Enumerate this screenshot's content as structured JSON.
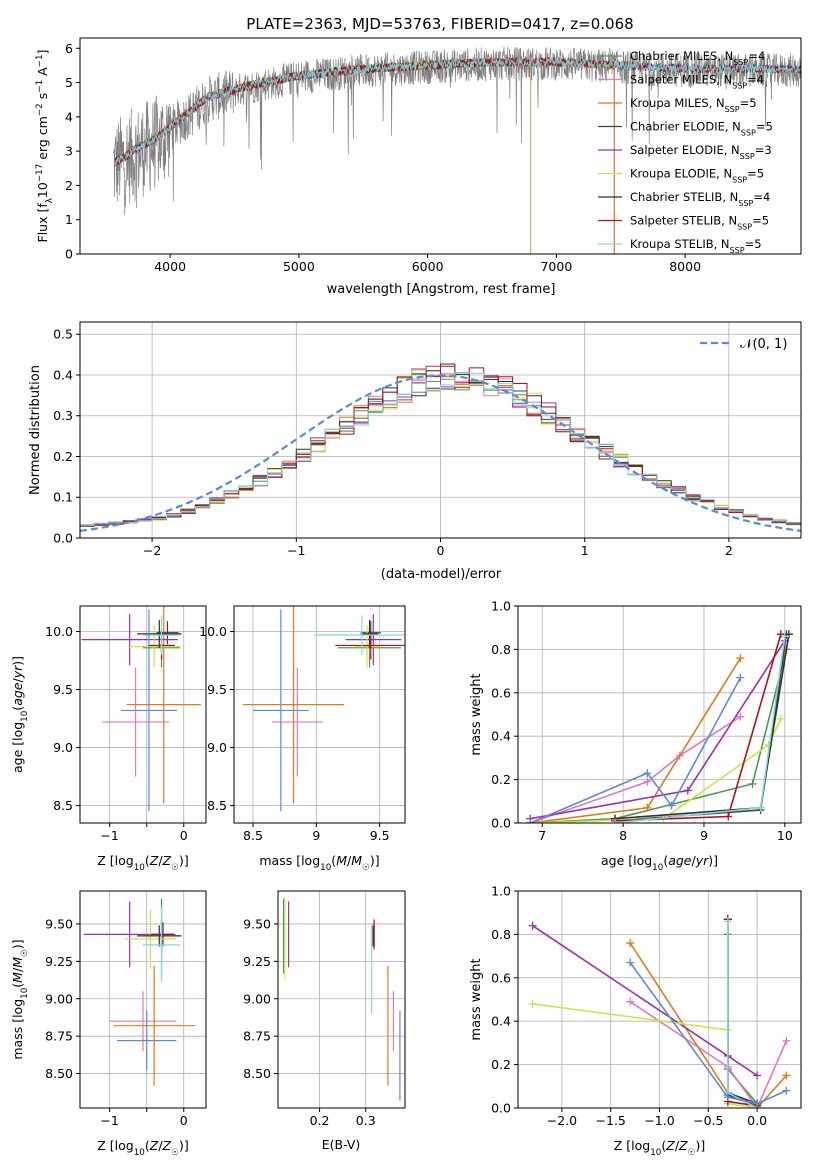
{
  "figure": {
    "title": "PLATE=2363, MJD=53763, FIBERID=0417, z=0.068"
  },
  "chart_data": [
    {
      "id": "spectrum",
      "type": "line",
      "xlabel": "wavelength [Angstrom, rest frame]",
      "ylabel": "Flux [f_λ 10^-17 erg cm^-2 s^-1 A^-1]",
      "xlim": [
        3300,
        8900
      ],
      "ylim": [
        0,
        6.3
      ],
      "xticks": [
        4000,
        5000,
        6000,
        7000,
        8000
      ],
      "yticks": [
        0,
        1,
        2,
        3,
        4,
        5,
        6
      ],
      "legend_loc": "upper-right",
      "data_curve": {
        "color": "#808080",
        "x_range": [
          3560,
          8900
        ],
        "continuum": [
          [
            3560,
            2.7
          ],
          [
            3700,
            3.0
          ],
          [
            3900,
            3.4
          ],
          [
            4100,
            4.0
          ],
          [
            4300,
            4.6
          ],
          [
            4600,
            4.9
          ],
          [
            5000,
            5.2
          ],
          [
            5500,
            5.4
          ],
          [
            6000,
            5.5
          ],
          [
            6500,
            5.6
          ],
          [
            7000,
            5.6
          ],
          [
            7500,
            5.5
          ],
          [
            8000,
            5.4
          ],
          [
            8900,
            5.4
          ]
        ]
      },
      "series": [
        {
          "name": "Chabrier MILES, N_SSP=4",
          "color": "#4d9a4d",
          "x_end": 7450
        },
        {
          "name": "Salpeter MILES, N_SSP=4",
          "color": "#e377c2",
          "x_end": 7450
        },
        {
          "name": "Kroupa MILES, N_SSP=5",
          "color": "#e07b1a",
          "x_end": 7450
        },
        {
          "name": "Chabrier ELODIE, N_SSP=5",
          "color": "#404040",
          "x_end": 6800
        },
        {
          "name": "Salpeter ELODIE, N_SSP=3",
          "color": "#9b30b0",
          "x_end": 6800
        },
        {
          "name": "Kroupa ELODIE, N_SSP=5",
          "color": "#c8e64a",
          "x_end": 6800
        },
        {
          "name": "Chabrier STELIB, N_SSP=4",
          "color": "#303030",
          "x_end": 8900
        },
        {
          "name": "Salpeter STELIB, N_SSP=5",
          "color": "#b01020",
          "x_end": 8900
        },
        {
          "name": "Kroupa STELIB, N_SSP=5",
          "color": "#80d8e0",
          "x_end": 8900
        }
      ]
    },
    {
      "id": "residuals",
      "type": "histogram",
      "xlabel": "(data-model)/error",
      "ylabel": "Normed distribution",
      "xlim": [
        -2.5,
        2.5
      ],
      "ylim": [
        0,
        0.53
      ],
      "xticks": [
        -2,
        -1,
        0,
        1,
        2
      ],
      "yticks": [
        0.0,
        0.1,
        0.2,
        0.3,
        0.4,
        0.5
      ],
      "grid": true,
      "legend_loc": "upper-right",
      "gaussian": {
        "name": "𝒩(0, 1)",
        "color": "#5b8bd8",
        "style": "dashed"
      },
      "bin_width": 0.1,
      "bin_start": -2.5,
      "base_profile": [
        0.03,
        0.034,
        0.037,
        0.04,
        0.044,
        0.048,
        0.056,
        0.066,
        0.078,
        0.092,
        0.108,
        0.124,
        0.141,
        0.161,
        0.183,
        0.206,
        0.23,
        0.252,
        0.276,
        0.301,
        0.326,
        0.347,
        0.364,
        0.382,
        0.395,
        0.4,
        0.398,
        0.392,
        0.38,
        0.368,
        0.35,
        0.329,
        0.307,
        0.283,
        0.259,
        0.235,
        0.212,
        0.19,
        0.17,
        0.15,
        0.132,
        0.116,
        0.1,
        0.087,
        0.075,
        0.064,
        0.055,
        0.047,
        0.041,
        0.035
      ]
    },
    {
      "id": "age-vs-Z",
      "type": "errorbar",
      "xlabel": "Z [log10(Z/Z☉)]",
      "ylabel": "age [log10(age/yr)]",
      "xlim": [
        -1.4,
        0.3
      ],
      "ylim": [
        8.35,
        10.22
      ],
      "xticks": [
        -1,
        -0.5,
        0
      ],
      "xticklabels": [
        "−1",
        "",
        "0"
      ],
      "yticks": [
        8.5,
        9.0,
        9.5,
        10.0
      ],
      "grid": true,
      "points": [
        {
          "color": "#4d9a4d",
          "x": -0.3,
          "xerr": 0.25,
          "y": 9.86,
          "yerr": 0.17
        },
        {
          "color": "#e377c2",
          "x": -0.65,
          "xerr": 0.45,
          "y": 9.22,
          "yerr": 0.47
        },
        {
          "color": "#e07b1a",
          "x": -0.27,
          "xerr": 0.5,
          "y": 9.37,
          "yerr": 0.85
        },
        {
          "color": "#404040",
          "x": -0.22,
          "xerr": 0.15,
          "y": 9.99,
          "yerr": 0.1
        },
        {
          "color": "#9b30b0",
          "x": -0.73,
          "xerr": 0.65,
          "y": 9.93,
          "yerr": 0.22
        },
        {
          "color": "#c8e64a",
          "x": -0.4,
          "xerr": 0.35,
          "y": 9.87,
          "yerr": 0.18
        },
        {
          "color": "#303030",
          "x": -0.33,
          "xerr": 0.3,
          "y": 9.98,
          "yerr": 0.12
        },
        {
          "color": "#b01020",
          "x": -0.3,
          "xerr": 0.18,
          "y": 9.88,
          "yerr": 0.12
        },
        {
          "color": "#80d8e0",
          "x": -0.3,
          "xerr": 0.25,
          "y": 9.97,
          "yerr": 0.17
        },
        {
          "color": "#5b8bd8",
          "x": -0.47,
          "xerr": 0.38,
          "y": 9.32,
          "yerr": 0.87
        }
      ]
    },
    {
      "id": "age-vs-mass",
      "type": "errorbar",
      "xlabel": "mass [log10(M/M☉)]",
      "xlim": [
        8.35,
        9.7
      ],
      "ylim": [
        8.35,
        10.22
      ],
      "xticks": [
        8.5,
        9.0,
        9.5
      ],
      "yticks": [
        8.5,
        9.0,
        9.5,
        10.0
      ],
      "grid": true,
      "points": [
        {
          "color": "#4d9a4d",
          "x": 9.42,
          "xerr": 0.25,
          "y": 9.86,
          "yerr": 0.17
        },
        {
          "color": "#e377c2",
          "x": 8.85,
          "xerr": 0.2,
          "y": 9.22,
          "yerr": 0.47
        },
        {
          "color": "#e07b1a",
          "x": 8.82,
          "xerr": 0.4,
          "y": 9.37,
          "yerr": 0.85
        },
        {
          "color": "#404040",
          "x": 9.43,
          "xerr": 0.08,
          "y": 9.99,
          "yerr": 0.1
        },
        {
          "color": "#9b30b0",
          "x": 9.45,
          "xerr": 0.22,
          "y": 9.93,
          "yerr": 0.22
        },
        {
          "color": "#c8e64a",
          "x": 9.4,
          "xerr": 0.1,
          "y": 9.87,
          "yerr": 0.18
        },
        {
          "color": "#303030",
          "x": 9.42,
          "xerr": 0.07,
          "y": 9.98,
          "yerr": 0.12
        },
        {
          "color": "#b01020",
          "x": 9.43,
          "xerr": 0.28,
          "y": 9.88,
          "yerr": 0.12
        },
        {
          "color": "#80d8e0",
          "x": 9.36,
          "xerr": 0.38,
          "y": 9.97,
          "yerr": 0.17
        },
        {
          "color": "#5b8bd8",
          "x": 8.72,
          "xerr": 0.22,
          "y": 9.32,
          "yerr": 0.87
        }
      ]
    },
    {
      "id": "mass-weight-vs-age",
      "type": "line",
      "xlabel": "age [log10(age/yr)]",
      "ylabel": "mass weight",
      "xlim": [
        6.7,
        10.2
      ],
      "ylim": [
        0,
        1.0
      ],
      "xticks": [
        7,
        8,
        9,
        10
      ],
      "yticks": [
        0.0,
        0.2,
        0.4,
        0.6,
        0.8,
        1.0
      ],
      "grid": true,
      "series": [
        {
          "color": "#4d9a4d",
          "points": [
            [
              6.85,
              0.0
            ],
            [
              7.9,
              0.02
            ],
            [
              9.6,
              0.18
            ],
            [
              10.02,
              0.8
            ]
          ]
        },
        {
          "color": "#e377c2",
          "points": [
            [
              6.85,
              0.0
            ],
            [
              8.3,
              0.19
            ],
            [
              8.7,
              0.31
            ],
            [
              9.45,
              0.49
            ]
          ]
        },
        {
          "color": "#e07b1a",
          "points": [
            [
              6.85,
              0.0
            ],
            [
              8.3,
              0.07
            ],
            [
              9.45,
              0.76
            ]
          ]
        },
        {
          "color": "#404040",
          "points": [
            [
              7.9,
              0.01
            ],
            [
              9.7,
              0.06
            ],
            [
              10.02,
              0.87
            ]
          ]
        },
        {
          "color": "#9b30b0",
          "points": [
            [
              6.85,
              0.02
            ],
            [
              8.8,
              0.15
            ],
            [
              10.0,
              0.84
            ]
          ]
        },
        {
          "color": "#c8e64a",
          "points": [
            [
              6.85,
              0.0
            ],
            [
              8.5,
              0.02
            ],
            [
              9.8,
              0.36
            ],
            [
              9.95,
              0.48
            ]
          ]
        },
        {
          "color": "#303030",
          "points": [
            [
              7.9,
              0.02
            ],
            [
              9.7,
              0.07
            ],
            [
              10.05,
              0.87
            ]
          ]
        },
        {
          "color": "#b01020",
          "points": [
            [
              7.9,
              0.01
            ],
            [
              9.3,
              0.03
            ],
            [
              9.95,
              0.87
            ]
          ]
        },
        {
          "color": "#80d8e0",
          "points": [
            [
              7.9,
              0.0
            ],
            [
              9.7,
              0.07
            ],
            [
              10.0,
              0.86
            ]
          ]
        },
        {
          "color": "#5b8bd8",
          "points": [
            [
              6.85,
              0.0
            ],
            [
              8.3,
              0.23
            ],
            [
              8.6,
              0.08
            ],
            [
              9.45,
              0.67
            ]
          ]
        }
      ]
    },
    {
      "id": "mass-vs-Z",
      "type": "errorbar",
      "xlabel": "Z [log10(Z/Z☉)]",
      "ylabel": "mass [log10(M/M☉)]",
      "xlim": [
        -1.4,
        0.3
      ],
      "ylim": [
        8.27,
        9.72
      ],
      "xticks": [
        -1,
        -0.5,
        0
      ],
      "xticklabels": [
        "−1",
        "",
        "0"
      ],
      "yticks": [
        8.5,
        8.75,
        9.0,
        9.25,
        9.5
      ],
      "grid": true,
      "points": [
        {
          "color": "#4d9a4d",
          "x": -0.3,
          "xerr": 0.25,
          "y": 9.42,
          "yerr": 0.25
        },
        {
          "color": "#e377c2",
          "x": -0.55,
          "xerr": 0.45,
          "y": 8.85,
          "yerr": 0.2
        },
        {
          "color": "#e07b1a",
          "x": -0.4,
          "xerr": 0.55,
          "y": 8.82,
          "yerr": 0.4
        },
        {
          "color": "#404040",
          "x": -0.28,
          "xerr": 0.15,
          "y": 9.43,
          "yerr": 0.08
        },
        {
          "color": "#9b30b0",
          "x": -0.73,
          "xerr": 0.62,
          "y": 9.43,
          "yerr": 0.22
        },
        {
          "color": "#c8e64a",
          "x": -0.45,
          "xerr": 0.35,
          "y": 9.4,
          "yerr": 0.2
        },
        {
          "color": "#303030",
          "x": -0.33,
          "xerr": 0.3,
          "y": 9.42,
          "yerr": 0.07
        },
        {
          "color": "#b01020",
          "x": -0.3,
          "xerr": 0.15,
          "y": 9.43,
          "yerr": 0.1
        },
        {
          "color": "#80d8e0",
          "x": -0.3,
          "xerr": 0.25,
          "y": 9.36,
          "yerr": 0.25
        },
        {
          "color": "#5b8bd8",
          "x": -0.5,
          "xerr": 0.4,
          "y": 8.72,
          "yerr": 0.2
        }
      ]
    },
    {
      "id": "mass-vs-ebv",
      "type": "errorbar",
      "xlabel": "E(B-V)",
      "xlim": [
        0.11,
        0.385
      ],
      "ylim": [
        8.27,
        9.72
      ],
      "xticks": [
        0.2,
        0.3
      ],
      "yticks": [
        8.5,
        8.75,
        9.0,
        9.25,
        9.5
      ],
      "grid": true,
      "points": [
        {
          "color": "#4d9a4d",
          "x": 0.122,
          "y": 9.42,
          "yerr": 0.25
        },
        {
          "color": "#e377c2",
          "x": 0.36,
          "y": 8.85,
          "yerr": 0.2
        },
        {
          "color": "#e07b1a",
          "x": 0.348,
          "y": 8.82,
          "yerr": 0.4
        },
        {
          "color": "#404040",
          "x": 0.318,
          "y": 9.43,
          "yerr": 0.08
        },
        {
          "color": "#9b30b0",
          "x": 0.133,
          "y": 9.43,
          "yerr": 0.22
        },
        {
          "color": "#c8e64a",
          "x": 0.125,
          "y": 9.4,
          "yerr": 0.27
        },
        {
          "color": "#303030",
          "x": 0.316,
          "y": 9.42,
          "yerr": 0.07
        },
        {
          "color": "#b01020",
          "x": 0.318,
          "y": 9.43,
          "yerr": 0.1
        },
        {
          "color": "#80d8e0",
          "x": 0.313,
          "y": 9.2,
          "yerr": 0.3
        },
        {
          "color": "#5b8bd8",
          "x": 0.374,
          "y": 8.62,
          "yerr": 0.3
        }
      ]
    },
    {
      "id": "mass-weight-vs-Z",
      "type": "line",
      "xlabel": "Z [log10(Z/Z☉)]",
      "ylabel": "mass weight",
      "xlim": [
        -2.45,
        0.45
      ],
      "ylim": [
        0,
        1.0
      ],
      "xticks": [
        -2.0,
        -1.5,
        -1.0,
        -0.5,
        0.0
      ],
      "xticklabels": [
        "−2.0",
        "−1.5",
        "−1.0",
        "−0.5",
        "0.0"
      ],
      "yticks": [
        0.0,
        0.2,
        0.4,
        0.6,
        0.8,
        1.0
      ],
      "grid": true,
      "series": [
        {
          "color": "#4d9a4d",
          "points": [
            [
              -0.3,
              0.8
            ],
            [
              -0.3,
              0.18
            ],
            [
              0.0,
              0.02
            ]
          ]
        },
        {
          "color": "#e377c2",
          "points": [
            [
              -1.3,
              0.49
            ],
            [
              -0.3,
              0.19
            ],
            [
              0.0,
              0.0
            ],
            [
              0.3,
              0.31
            ]
          ]
        },
        {
          "color": "#e07b1a",
          "points": [
            [
              -1.3,
              0.76
            ],
            [
              -0.3,
              0.07
            ],
            [
              0.0,
              0.0
            ],
            [
              0.3,
              0.15
            ]
          ]
        },
        {
          "color": "#404040",
          "points": [
            [
              -0.3,
              0.87
            ],
            [
              -0.3,
              0.06
            ],
            [
              0.0,
              0.01
            ]
          ]
        },
        {
          "color": "#9b30b0",
          "points": [
            [
              -2.3,
              0.84
            ],
            [
              -0.3,
              0.24
            ],
            [
              0.0,
              0.15
            ]
          ]
        },
        {
          "color": "#c8e64a",
          "points": [
            [
              -2.3,
              0.48
            ],
            [
              -0.3,
              0.36
            ],
            [
              -0.3,
              0.02
            ],
            [
              0.0,
              0.0
            ]
          ]
        },
        {
          "color": "#303030",
          "points": [
            [
              -0.3,
              0.87
            ],
            [
              -0.3,
              0.07
            ],
            [
              0.0,
              0.02
            ]
          ]
        },
        {
          "color": "#b01020",
          "points": [
            [
              -0.3,
              0.87
            ],
            [
              -0.3,
              0.03
            ],
            [
              0.0,
              0.01
            ]
          ]
        },
        {
          "color": "#80d8e0",
          "points": [
            [
              -0.3,
              0.86
            ],
            [
              -0.3,
              0.07
            ],
            [
              0.0,
              0.0
            ]
          ]
        },
        {
          "color": "#5b8bd8",
          "points": [
            [
              -1.3,
              0.67
            ],
            [
              -0.3,
              0.05
            ],
            [
              0.0,
              0.02
            ],
            [
              0.3,
              0.08
            ]
          ]
        }
      ]
    }
  ]
}
